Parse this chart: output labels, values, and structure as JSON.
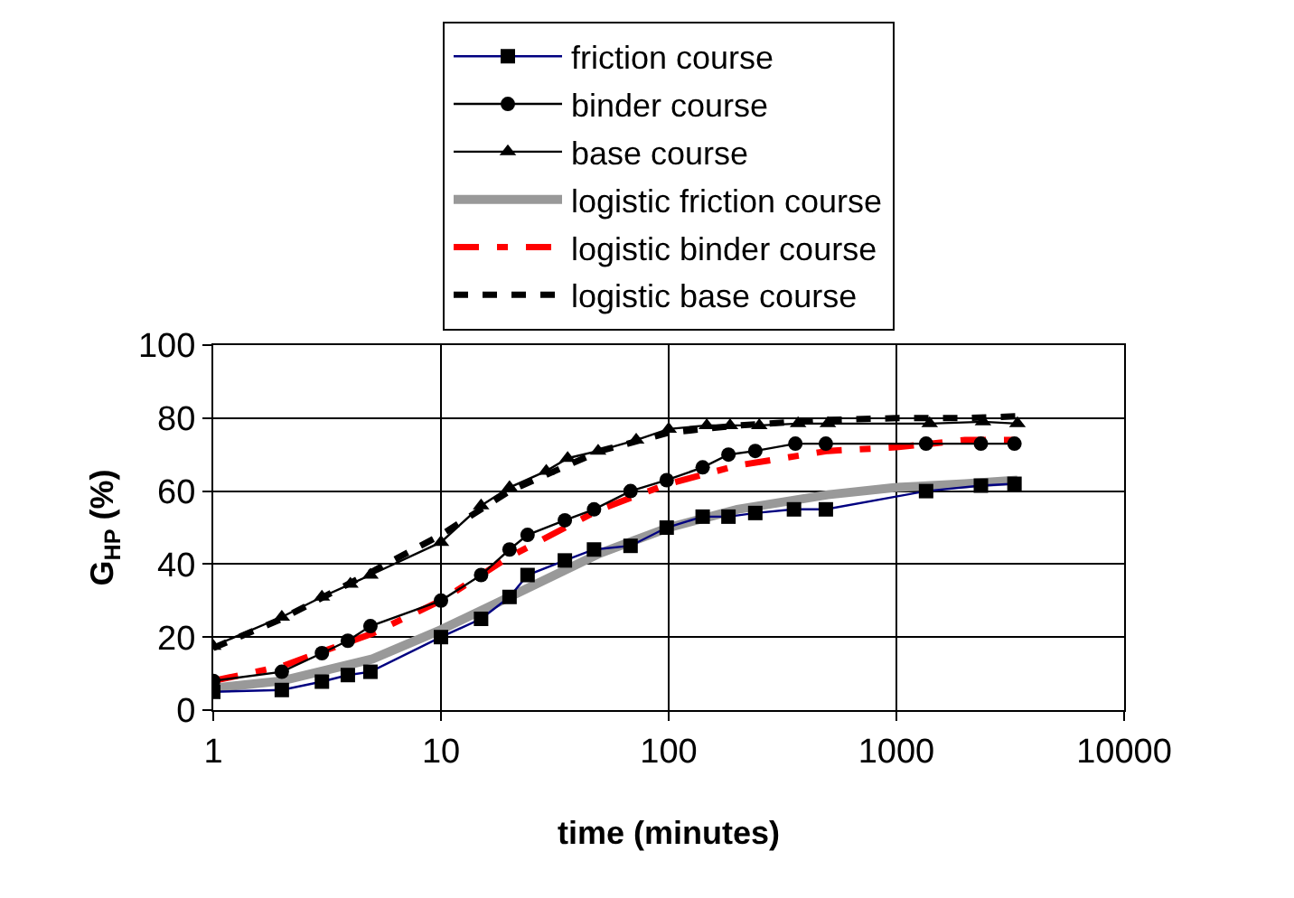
{
  "chart_data": {
    "type": "line",
    "xlabel": "time (minutes)",
    "ylabel": "G$_{HP}$ (%)",
    "log": "x",
    "grid": true,
    "legend": "top",
    "xlim": [
      1,
      10000
    ],
    "xticks": [
      1,
      10,
      100,
      1000,
      10000
    ],
    "ylim": [
      0,
      100
    ],
    "yticks": [
      0,
      20,
      40,
      60,
      80,
      100
    ],
    "series": [
      {
        "name": "friction course",
        "color": "#000080",
        "marker": "square",
        "line_style": "solid",
        "x": [
          1,
          2,
          3,
          3.9,
          4.9,
          10,
          15,
          20,
          24,
          35,
          47,
          68,
          98,
          141,
          183,
          240,
          355,
          490,
          1350,
          2350,
          3300
        ],
        "values": [
          5,
          5.5,
          7.8,
          9.6,
          10.5,
          20,
          25,
          31,
          37,
          41,
          44,
          45,
          50,
          53,
          53,
          54,
          55,
          55,
          60,
          61.5,
          62
        ]
      },
      {
        "name": "binder course",
        "color": "#000000",
        "marker": "circle",
        "line_style": "solid",
        "x": [
          1,
          2,
          3,
          3.9,
          4.9,
          10,
          15,
          20,
          24,
          35,
          47,
          68,
          98,
          141,
          183,
          240,
          360,
          490,
          1350,
          2350,
          3300
        ],
        "values": [
          8,
          10.5,
          15.6,
          19,
          23,
          30,
          37,
          44,
          48,
          52,
          55,
          60,
          63,
          66.5,
          70,
          71,
          73,
          73,
          73,
          73,
          73
        ]
      },
      {
        "name": "base course",
        "color": "#000000",
        "marker": "triangle",
        "line_style": "solid",
        "x": [
          1,
          2,
          3,
          4,
          4.9,
          10,
          15,
          20,
          29,
          36,
          49,
          72,
          100,
          147,
          186,
          250,
          370,
          500,
          1400,
          2400,
          3400
        ],
        "values": [
          17.5,
          25.5,
          31,
          34.5,
          37,
          46,
          56,
          61,
          65.5,
          69,
          71,
          74,
          77,
          78,
          78,
          78,
          78.5,
          78.5,
          78.5,
          79,
          78.5
        ]
      },
      {
        "name": "logistic friction course",
        "color": "#999999",
        "marker": "none",
        "line_style": "solid",
        "x": [
          1,
          2,
          5,
          10,
          20,
          50,
          100,
          200,
          500,
          1000,
          2000,
          3400
        ],
        "values": [
          6,
          8,
          14,
          22,
          31,
          43,
          50,
          55,
          59,
          61,
          62,
          63
        ]
      },
      {
        "name": "logistic binder course",
        "color": "#ff0000",
        "marker": "none",
        "line_style": "dashed",
        "x": [
          1,
          2,
          5,
          10,
          20,
          50,
          100,
          200,
          500,
          1000,
          2000,
          3400
        ],
        "values": [
          8,
          12,
          21,
          30,
          42,
          55,
          62,
          67,
          71,
          72,
          74,
          74
        ]
      },
      {
        "name": "logistic base course",
        "color": "#000000",
        "marker": "none",
        "line_style": "dashed",
        "x": [
          1,
          2,
          5,
          10,
          20,
          50,
          100,
          200,
          500,
          1000,
          2000,
          3400
        ],
        "values": [
          17,
          25,
          38,
          48,
          60,
          71,
          76,
          78,
          79.5,
          80,
          80,
          80.5
        ]
      }
    ]
  }
}
